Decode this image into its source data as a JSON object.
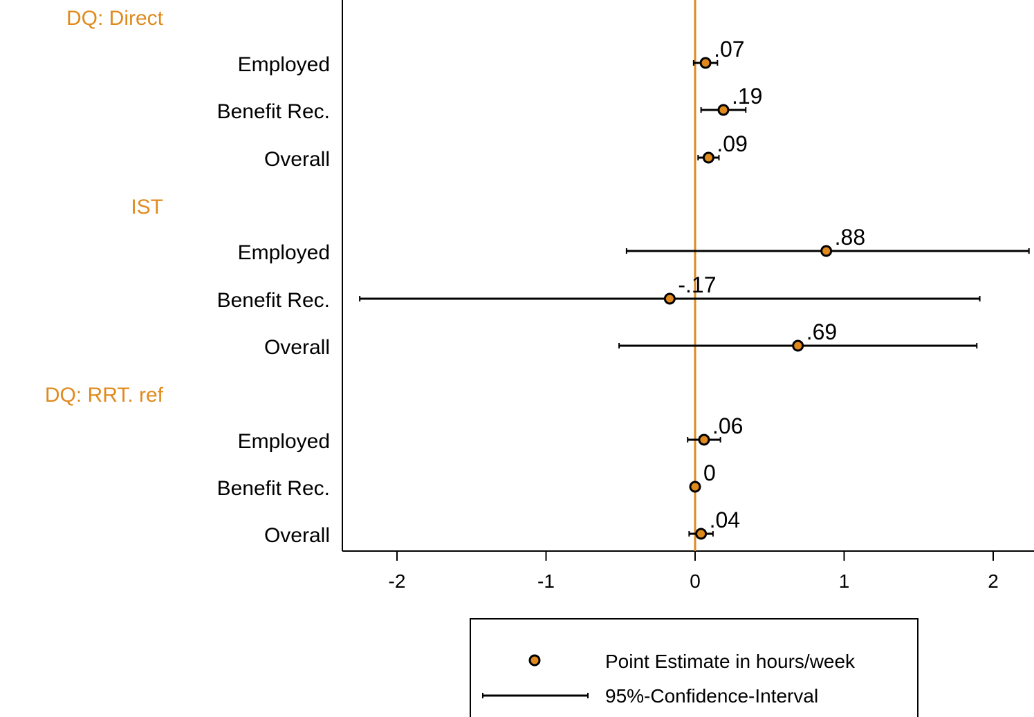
{
  "chart_data": {
    "type": "scatter",
    "subtype": "coefficient-plot-with-confidence-intervals",
    "xlim": [
      -2.4,
      2.25
    ],
    "xticks": [
      -2,
      -1,
      0,
      1,
      2
    ],
    "xtick_labels": [
      "-2",
      "-1",
      "0",
      "1",
      "2"
    ],
    "reference_line": {
      "x": 0,
      "color": "#e08a1e"
    },
    "grid": false,
    "groups": [
      {
        "name": "DQ: Direct",
        "rows": [
          {
            "label": "Employed",
            "estimate": 0.07,
            "estimate_label": ".07",
            "ci_low": -0.01,
            "ci_high": 0.15
          },
          {
            "label": "Benefit Rec.",
            "estimate": 0.19,
            "estimate_label": ".19",
            "ci_low": 0.04,
            "ci_high": 0.34
          },
          {
            "label": "Overall",
            "estimate": 0.09,
            "estimate_label": ".09",
            "ci_low": 0.02,
            "ci_high": 0.16
          }
        ]
      },
      {
        "name": "IST",
        "rows": [
          {
            "label": "Employed",
            "estimate": 0.88,
            "estimate_label": ".88",
            "ci_low": -0.46,
            "ci_high": 2.24
          },
          {
            "label": "Benefit Rec.",
            "estimate": -0.17,
            "estimate_label": "-.17",
            "ci_low": -2.25,
            "ci_high": 1.91
          },
          {
            "label": "Overall",
            "estimate": 0.69,
            "estimate_label": ".69",
            "ci_low": -0.51,
            "ci_high": 1.89
          }
        ]
      },
      {
        "name": "DQ: RRT. ref",
        "rows": [
          {
            "label": "Employed",
            "estimate": 0.06,
            "estimate_label": ".06",
            "ci_low": -0.05,
            "ci_high": 0.17
          },
          {
            "label": "Benefit Rec.",
            "estimate": 0.0,
            "estimate_label": "0",
            "ci_low": -0.01,
            "ci_high": 0.01
          },
          {
            "label": "Overall",
            "estimate": 0.04,
            "estimate_label": ".04",
            "ci_low": -0.04,
            "ci_high": 0.12
          }
        ]
      }
    ],
    "legend": {
      "position": "bottom",
      "items": [
        {
          "kind": "point",
          "label": "Point Estimate in hours/week"
        },
        {
          "kind": "ci",
          "label": "95%-Confidence-Interval"
        }
      ]
    },
    "colors": {
      "accent": "#e08a1e",
      "marker_fill": "#e08a1e",
      "marker_edge": "#000000",
      "ci_line": "#000000"
    }
  }
}
